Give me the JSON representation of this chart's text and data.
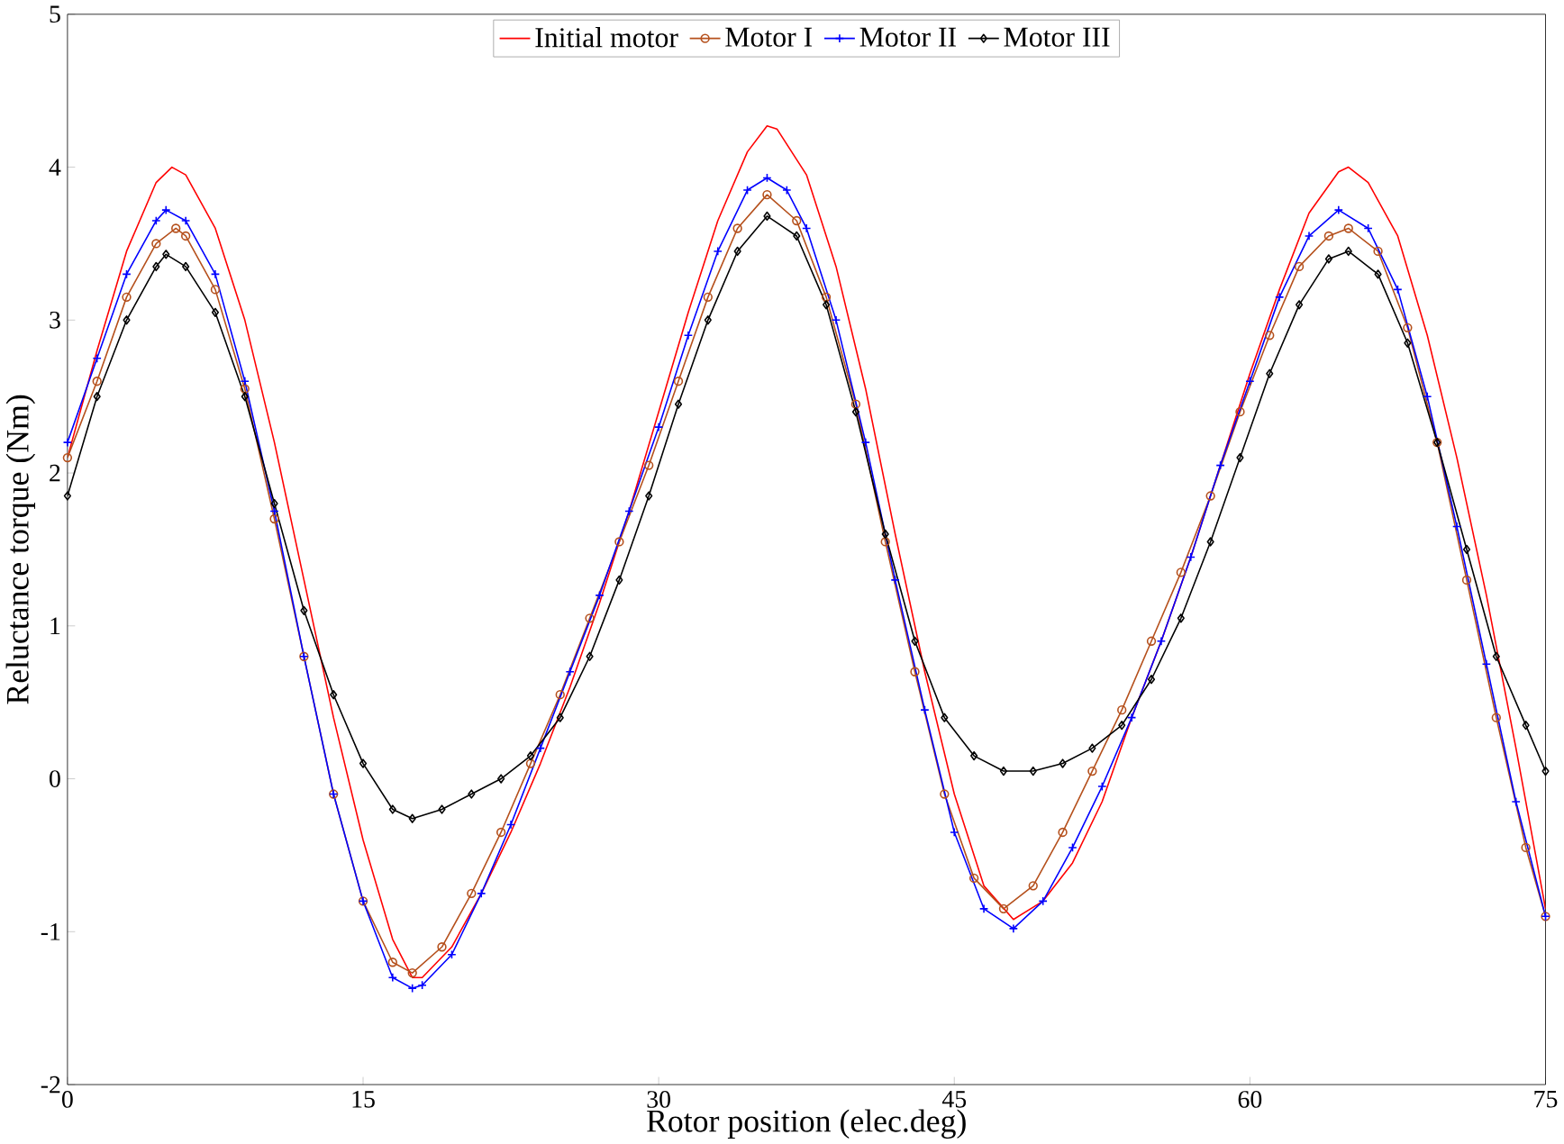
{
  "chart_data": {
    "type": "line",
    "xlabel": "Rotor position (elec.deg)",
    "ylabel": "Reluctance torque (Nm)",
    "xlim": [
      0,
      75
    ],
    "xticks": [
      0,
      15,
      30,
      45,
      60,
      75
    ],
    "ylim": [
      -2,
      5
    ],
    "yticks": [
      -2,
      -1,
      0,
      1,
      2,
      3,
      4,
      5
    ],
    "grid": false,
    "legend": "top",
    "series": [
      {
        "name": "Initial motor",
        "color": "#ff0000",
        "marker": "none",
        "x": [
          0,
          1.5,
          3,
          4.5,
          5.3,
          6,
          7.5,
          9,
          10.5,
          12,
          13.5,
          15,
          16.5,
          17.5,
          18,
          19.5,
          21,
          22.5,
          24,
          25.5,
          27,
          28.5,
          30,
          31.5,
          33,
          34.5,
          35.5,
          36,
          37.5,
          39,
          40.5,
          42,
          43.5,
          45,
          46.5,
          48,
          49.5,
          51,
          52.5,
          54,
          55.5,
          57,
          58.5,
          60,
          61.5,
          63,
          64.5,
          65,
          66,
          67.5,
          69,
          70.5,
          72,
          73.5,
          75
        ],
        "values": [
          2.1,
          2.8,
          3.45,
          3.9,
          4.0,
          3.95,
          3.6,
          3.0,
          2.2,
          1.3,
          0.4,
          -0.4,
          -1.05,
          -1.3,
          -1.3,
          -1.1,
          -0.75,
          -0.35,
          0.1,
          0.6,
          1.15,
          1.75,
          2.4,
          3.05,
          3.65,
          4.1,
          4.27,
          4.25,
          3.95,
          3.35,
          2.55,
          1.6,
          0.7,
          -0.1,
          -0.7,
          -0.92,
          -0.8,
          -0.55,
          -0.15,
          0.4,
          0.9,
          1.45,
          2.05,
          2.65,
          3.2,
          3.7,
          3.97,
          4.0,
          3.9,
          3.55,
          2.9,
          2.1,
          1.2,
          0.2,
          -0.85
        ]
      },
      {
        "name": "Motor I",
        "color": "#b5501c",
        "marker": "circle",
        "x": [
          0,
          1.5,
          3,
          4.5,
          5.5,
          6,
          7.5,
          9,
          10.5,
          12,
          13.5,
          15,
          16.5,
          17.5,
          19,
          20.5,
          22,
          23.5,
          25,
          26.5,
          28,
          29.5,
          31,
          32.5,
          34,
          35.5,
          37,
          38.5,
          40,
          41.5,
          43,
          44.5,
          46,
          47.5,
          49,
          50.5,
          52,
          53.5,
          55,
          56.5,
          58,
          59.5,
          61,
          62.5,
          64,
          65,
          66.5,
          68,
          69.5,
          71,
          72.5,
          74,
          75
        ],
        "values": [
          2.1,
          2.6,
          3.15,
          3.5,
          3.6,
          3.55,
          3.2,
          2.55,
          1.7,
          0.8,
          -0.1,
          -0.8,
          -1.2,
          -1.27,
          -1.1,
          -0.75,
          -0.35,
          0.1,
          0.55,
          1.05,
          1.55,
          2.05,
          2.6,
          3.15,
          3.6,
          3.82,
          3.65,
          3.15,
          2.45,
          1.55,
          0.7,
          -0.1,
          -0.65,
          -0.85,
          -0.7,
          -0.35,
          0.05,
          0.45,
          0.9,
          1.35,
          1.85,
          2.4,
          2.9,
          3.35,
          3.55,
          3.6,
          3.45,
          2.95,
          2.2,
          1.3,
          0.4,
          -0.45,
          -0.9
        ]
      },
      {
        "name": "Motor II",
        "color": "#0000ff",
        "marker": "cross",
        "x": [
          0,
          1.5,
          3,
          4.5,
          5,
          6,
          7.5,
          9,
          10.5,
          12,
          13.5,
          15,
          16.5,
          17.5,
          18,
          19.5,
          21,
          22.5,
          24,
          25.5,
          27,
          28.5,
          30,
          31.5,
          33,
          34.5,
          35.5,
          36.5,
          37.5,
          39,
          40.5,
          42,
          43.5,
          45,
          46.5,
          48,
          49.5,
          51,
          52.5,
          54,
          55.5,
          57,
          58.5,
          60,
          61.5,
          63,
          64.5,
          66,
          67.5,
          69,
          70.5,
          72,
          73.5,
          75
        ],
        "values": [
          2.2,
          2.75,
          3.3,
          3.65,
          3.72,
          3.65,
          3.3,
          2.6,
          1.75,
          0.8,
          -0.1,
          -0.8,
          -1.3,
          -1.37,
          -1.35,
          -1.15,
          -0.75,
          -0.3,
          0.2,
          0.7,
          1.2,
          1.75,
          2.3,
          2.9,
          3.45,
          3.85,
          3.93,
          3.85,
          3.6,
          3.0,
          2.2,
          1.3,
          0.45,
          -0.35,
          -0.85,
          -0.98,
          -0.8,
          -0.45,
          -0.05,
          0.4,
          0.9,
          1.45,
          2.05,
          2.6,
          3.15,
          3.55,
          3.72,
          3.6,
          3.2,
          2.5,
          1.65,
          0.75,
          -0.15,
          -0.9
        ]
      },
      {
        "name": "Motor III",
        "color": "#000000",
        "marker": "diamond",
        "x": [
          0,
          1.5,
          3,
          4.5,
          5,
          6,
          7.5,
          9,
          10.5,
          12,
          13.5,
          15,
          16.5,
          17.5,
          19,
          20.5,
          22,
          23.5,
          25,
          26.5,
          28,
          29.5,
          31,
          32.5,
          34,
          35.5,
          37,
          38.5,
          40,
          41.5,
          43,
          44.5,
          46,
          47.5,
          49,
          50.5,
          52,
          53.5,
          55,
          56.5,
          58,
          59.5,
          61,
          62.5,
          64,
          65,
          66.5,
          68,
          69.5,
          71,
          72.5,
          74,
          75
        ],
        "values": [
          1.85,
          2.5,
          3.0,
          3.35,
          3.43,
          3.35,
          3.05,
          2.5,
          1.8,
          1.1,
          0.55,
          0.1,
          -0.2,
          -0.26,
          -0.2,
          -0.1,
          0.0,
          0.15,
          0.4,
          0.8,
          1.3,
          1.85,
          2.45,
          3.0,
          3.45,
          3.68,
          3.55,
          3.1,
          2.4,
          1.6,
          0.9,
          0.4,
          0.15,
          0.05,
          0.05,
          0.1,
          0.2,
          0.35,
          0.65,
          1.05,
          1.55,
          2.1,
          2.65,
          3.1,
          3.4,
          3.45,
          3.3,
          2.85,
          2.2,
          1.5,
          0.8,
          0.35,
          0.05
        ]
      }
    ]
  }
}
